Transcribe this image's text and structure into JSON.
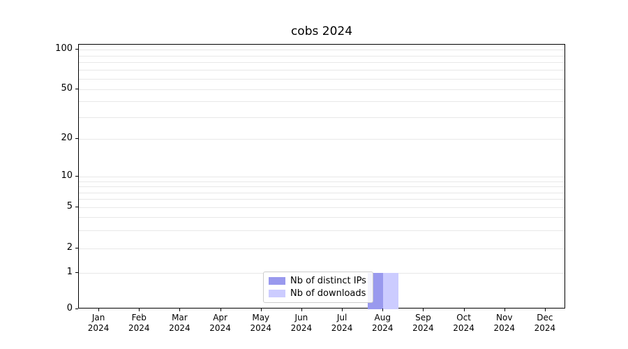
{
  "chart_data": {
    "type": "bar",
    "title": "cobs 2024",
    "months": [
      "Jan",
      "Feb",
      "Mar",
      "Apr",
      "May",
      "Jun",
      "Jul",
      "Aug",
      "Sep",
      "Oct",
      "Nov",
      "Dec"
    ],
    "year": "2024",
    "series": [
      {
        "name": "Nb of distinct IPs",
        "color": "#9999ee",
        "values": [
          0,
          0,
          0,
          0,
          0,
          0,
          0,
          1,
          0,
          0,
          0,
          0
        ]
      },
      {
        "name": "Nb of downloads",
        "color": "#ccccff",
        "values": [
          0,
          0,
          0,
          0,
          0,
          0,
          0,
          1,
          0,
          0,
          0,
          0
        ]
      }
    ],
    "yticks": [
      0,
      1,
      2,
      5,
      10,
      20,
      50,
      100
    ],
    "yscale": "log-like (symlog, linear below 1)",
    "ylim": [
      0,
      110
    ],
    "grid": true,
    "legend_position": "lower center"
  }
}
